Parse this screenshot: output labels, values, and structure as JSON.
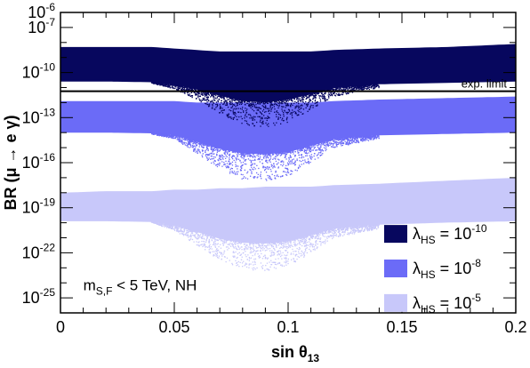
{
  "chart_data": {
    "type": "scatter",
    "title": "",
    "xlabel": "sin θ13",
    "ylabel": "BR (μ → e γ)",
    "xlim": [
      0,
      0.2
    ],
    "ylim": [
      1e-26,
      1e-06
    ],
    "yscale": "log",
    "grid": false,
    "legend_position": "bottom-right",
    "x_ticks": [
      {
        "value": 0,
        "label": "0"
      },
      {
        "value": 0.05,
        "label": "0.05"
      },
      {
        "value": 0.1,
        "label": "0.1"
      },
      {
        "value": 0.15,
        "label": "0.15"
      },
      {
        "value": 0.2,
        "label": "0.2"
      }
    ],
    "y_ticks": [
      {
        "exp": -6,
        "label": "10",
        "sup": "-6"
      },
      {
        "exp": -7,
        "label": "10",
        "sup": "-7"
      },
      {
        "exp": -10,
        "label": "10",
        "sup": "-10"
      },
      {
        "exp": -13,
        "label": "10",
        "sup": "-13"
      },
      {
        "exp": -16,
        "label": "10",
        "sup": "-16"
      },
      {
        "exp": -19,
        "label": "10",
        "sup": "-19"
      },
      {
        "exp": -22,
        "label": "10",
        "sup": "-22"
      },
      {
        "exp": -25,
        "label": "10",
        "sup": "-25"
      }
    ],
    "exp_limit": {
      "value": 5.7e-12,
      "label": "exp. limit"
    },
    "annotation": {
      "main": "m",
      "sub": "S,F",
      "rest": " < 5 TeV,  NH"
    },
    "series": [
      {
        "name_main": "λ",
        "name_sub": "HS",
        "name_rest": " = 10",
        "name_sup": "-10",
        "color": "#07075e",
        "band": [
          {
            "x": 0.0,
            "lo": -10.6,
            "hi": -8.3
          },
          {
            "x": 0.02,
            "lo": -10.6,
            "hi": -8.3
          },
          {
            "x": 0.04,
            "lo": -10.7,
            "hi": -8.3
          },
          {
            "x": 0.05,
            "lo": -11.1,
            "hi": -8.4
          },
          {
            "x": 0.06,
            "lo": -11.8,
            "hi": -8.5
          },
          {
            "x": 0.07,
            "lo": -12.7,
            "hi": -8.6
          },
          {
            "x": 0.08,
            "lo": -13.5,
            "hi": -8.6
          },
          {
            "x": 0.09,
            "lo": -13.7,
            "hi": -8.6
          },
          {
            "x": 0.1,
            "lo": -13.3,
            "hi": -8.6
          },
          {
            "x": 0.11,
            "lo": -12.5,
            "hi": -8.6
          },
          {
            "x": 0.12,
            "lo": -11.6,
            "hi": -8.5
          },
          {
            "x": 0.14,
            "lo": -11.0,
            "hi": -8.4
          },
          {
            "x": 0.17,
            "lo": -10.8,
            "hi": -8.3
          },
          {
            "x": 0.2,
            "lo": -10.6,
            "hi": -8.1
          }
        ]
      },
      {
        "name_main": "λ",
        "name_sub": "HS",
        "name_rest": " = 10",
        "name_sup": "-8",
        "color": "#6b6bf7",
        "band": [
          {
            "x": 0.0,
            "lo": -14.0,
            "hi": -11.9
          },
          {
            "x": 0.02,
            "lo": -14.0,
            "hi": -11.9
          },
          {
            "x": 0.04,
            "lo": -14.1,
            "hi": -11.9
          },
          {
            "x": 0.05,
            "lo": -14.4,
            "hi": -11.9
          },
          {
            "x": 0.06,
            "lo": -15.4,
            "hi": -12.0
          },
          {
            "x": 0.07,
            "lo": -16.4,
            "hi": -12.0
          },
          {
            "x": 0.08,
            "lo": -17.1,
            "hi": -12.0
          },
          {
            "x": 0.09,
            "lo": -17.2,
            "hi": -12.0
          },
          {
            "x": 0.1,
            "lo": -16.9,
            "hi": -12.0
          },
          {
            "x": 0.11,
            "lo": -16.0,
            "hi": -12.0
          },
          {
            "x": 0.12,
            "lo": -15.0,
            "hi": -11.9
          },
          {
            "x": 0.14,
            "lo": -14.4,
            "hi": -11.8
          },
          {
            "x": 0.17,
            "lo": -14.2,
            "hi": -11.7
          },
          {
            "x": 0.2,
            "lo": -14.0,
            "hi": -11.6
          }
        ]
      },
      {
        "name_main": "λ",
        "name_sub": "HS",
        "name_rest": " = 10",
        "name_sup": "-5",
        "color": "#c8c8fa",
        "band": [
          {
            "x": 0.0,
            "lo": -19.9,
            "hi": -18.0
          },
          {
            "x": 0.02,
            "lo": -19.9,
            "hi": -17.9
          },
          {
            "x": 0.04,
            "lo": -20.0,
            "hi": -17.9
          },
          {
            "x": 0.05,
            "lo": -20.5,
            "hi": -17.8
          },
          {
            "x": 0.06,
            "lo": -21.5,
            "hi": -17.8
          },
          {
            "x": 0.07,
            "lo": -22.5,
            "hi": -17.7
          },
          {
            "x": 0.08,
            "lo": -23.1,
            "hi": -17.7
          },
          {
            "x": 0.09,
            "lo": -23.2,
            "hi": -17.6
          },
          {
            "x": 0.1,
            "lo": -22.9,
            "hi": -17.6
          },
          {
            "x": 0.11,
            "lo": -22.0,
            "hi": -17.6
          },
          {
            "x": 0.12,
            "lo": -21.0,
            "hi": -17.5
          },
          {
            "x": 0.14,
            "lo": -20.4,
            "hi": -17.4
          },
          {
            "x": 0.17,
            "lo": -20.1,
            "hi": -17.2
          },
          {
            "x": 0.2,
            "lo": -19.9,
            "hi": -17.0
          }
        ]
      }
    ]
  }
}
